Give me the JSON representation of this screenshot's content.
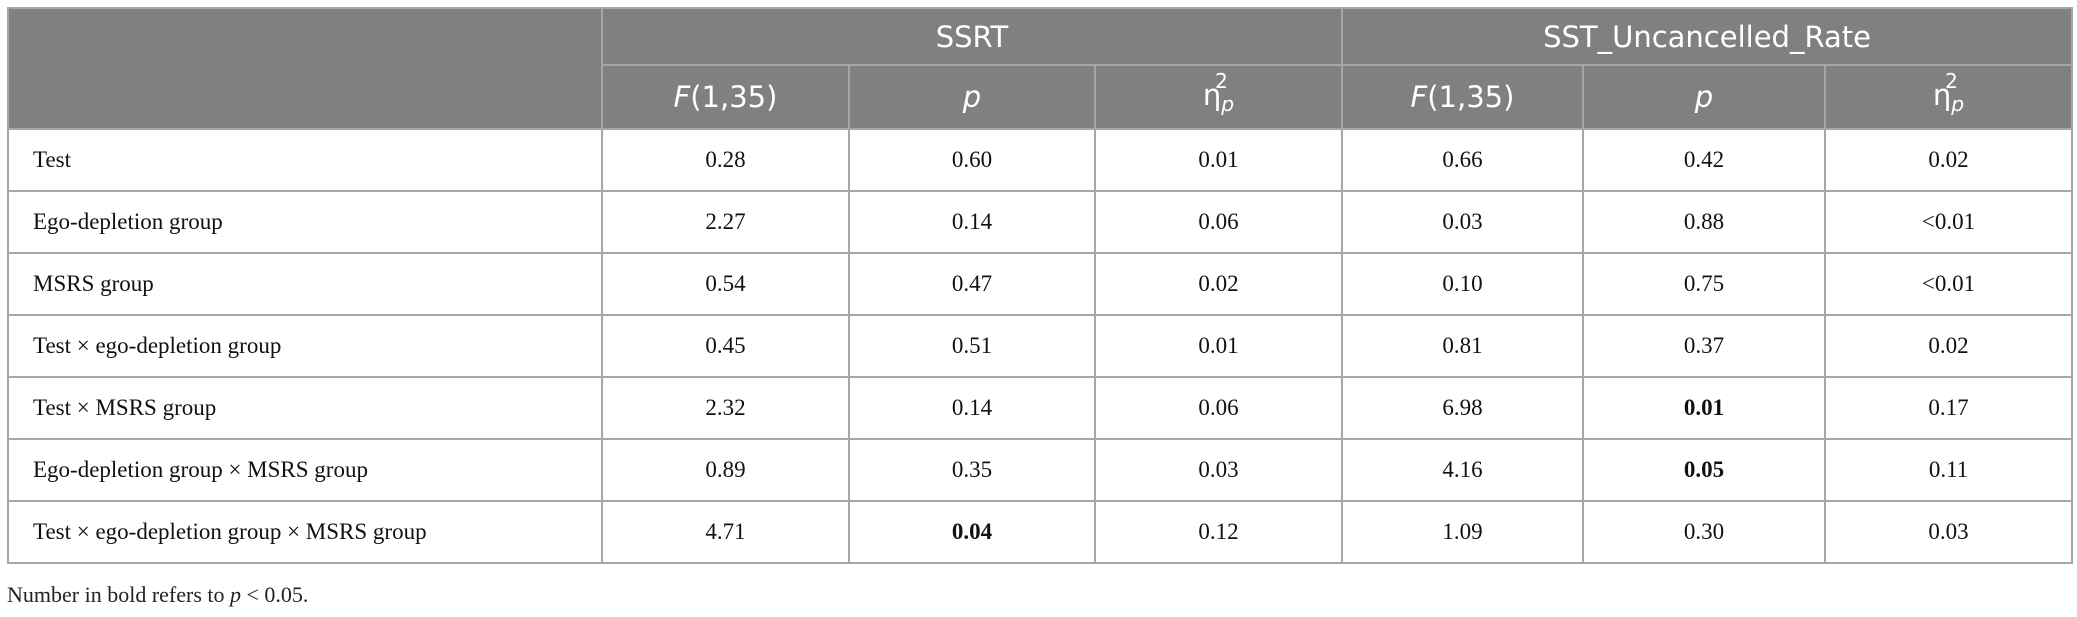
{
  "table": {
    "groups": [
      "SSRT",
      "SST_Uncancelled_Rate"
    ],
    "columns": [
      {
        "italic": "F",
        "rest": "(1,35)"
      },
      {
        "italic": "p"
      },
      {
        "symbol": "η",
        "sub": "p",
        "sup": "2"
      },
      {
        "italic": "F",
        "rest": "(1,35)"
      },
      {
        "italic": "p"
      },
      {
        "symbol": "η",
        "sub": "p",
        "sup": "2"
      }
    ],
    "rows": [
      {
        "label": "Test",
        "values": [
          "0.28",
          "0.60",
          "0.01",
          "0.66",
          "0.42",
          "0.02"
        ],
        "bold": []
      },
      {
        "label": "Ego-depletion group",
        "values": [
          "2.27",
          "0.14",
          "0.06",
          "0.03",
          "0.88",
          "<0.01"
        ],
        "bold": []
      },
      {
        "label": "MSRS group",
        "values": [
          "0.54",
          "0.47",
          "0.02",
          "0.10",
          "0.75",
          "<0.01"
        ],
        "bold": []
      },
      {
        "label": "Test × ego-depletion group",
        "values": [
          "0.45",
          "0.51",
          "0.01",
          "0.81",
          "0.37",
          "0.02"
        ],
        "bold": []
      },
      {
        "label": "Test × MSRS group",
        "values": [
          "2.32",
          "0.14",
          "0.06",
          "6.98",
          "0.01",
          "0.17"
        ],
        "bold": [
          4
        ]
      },
      {
        "label": "Ego-depletion group × MSRS group",
        "values": [
          "0.89",
          "0.35",
          "0.03",
          "4.16",
          "0.05",
          "0.11"
        ],
        "bold": [
          4
        ]
      },
      {
        "label": "Test × ego-depletion group × MSRS group",
        "values": [
          "4.71",
          "0.04",
          "0.12",
          "1.09",
          "0.30",
          "0.03"
        ],
        "bold": [
          1
        ]
      }
    ]
  },
  "footnote": {
    "before": "Number in bold refers to ",
    "italic": "p",
    "after": " < 0.05."
  }
}
